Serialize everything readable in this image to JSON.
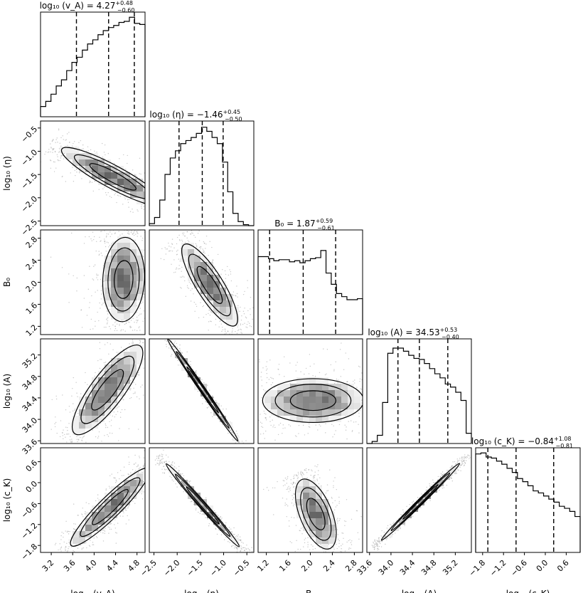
{
  "chart_data": {
    "type": "corner",
    "parameters": [
      {
        "key": "log_vA",
        "axis_label": "log₁₀ (v_A)",
        "range": [
          3.0,
          4.95
        ],
        "ticks": [
          "3.2",
          "3.6",
          "4.0",
          "4.4",
          "4.8"
        ],
        "tick_values": [
          3.2,
          3.6,
          4.0,
          4.4,
          4.8
        ],
        "median": 4.27,
        "plus": 0.48,
        "minus": 0.6,
        "title_lhs": "log₁₀ (v_A) = 4.27",
        "title_sup": "+0.48",
        "title_sub": "−0.60",
        "hist": [
          0.1,
          0.15,
          0.22,
          0.3,
          0.36,
          0.45,
          0.53,
          0.58,
          0.65,
          0.71,
          0.75,
          0.8,
          0.84,
          0.87,
          0.89,
          0.92,
          0.93,
          0.97,
          0.91,
          0.9
        ]
      },
      {
        "key": "log_eta",
        "axis_label": "log₁₀ (η)",
        "range": [
          -2.6,
          -0.35
        ],
        "ticks": [
          "−2.5",
          "−2.0",
          "−1.5",
          "−1.0",
          "−0.5"
        ],
        "tick_values": [
          -2.5,
          -2.0,
          -1.5,
          -1.0,
          -0.5
        ],
        "median": -1.46,
        "plus": 0.45,
        "minus": 0.5,
        "title_lhs": "log₁₀ (η) = −1.46",
        "title_sup": "+0.45",
        "title_sub": "−0.50",
        "hist": [
          0.02,
          0.08,
          0.25,
          0.5,
          0.66,
          0.73,
          0.8,
          0.83,
          0.86,
          0.9,
          0.96,
          0.92,
          0.86,
          0.8,
          0.62,
          0.33,
          0.12,
          0.04,
          0.01,
          0.0
        ]
      },
      {
        "key": "B0",
        "axis_label": "B₀",
        "range": [
          1.05,
          2.95
        ],
        "ticks": [
          "1.2",
          "1.6",
          "2.0",
          "2.4",
          "2.8"
        ],
        "tick_values": [
          1.2,
          1.6,
          2.0,
          2.4,
          2.8
        ],
        "median": 1.87,
        "plus": 0.59,
        "minus": 0.61,
        "title_lhs": "B₀ = 1.87",
        "title_sup": "+0.59",
        "title_sub": "−0.61",
        "hist": [
          0.76,
          0.76,
          0.74,
          0.72,
          0.73,
          0.73,
          0.71,
          0.72,
          0.7,
          0.72,
          0.74,
          0.75,
          0.82,
          0.6,
          0.49,
          0.4,
          0.37,
          0.34,
          0.34,
          0.35
        ]
      },
      {
        "key": "log_A",
        "axis_label": "log₁₀ (A)",
        "range": [
          33.55,
          35.5
        ],
        "ticks": [
          "33.6",
          "34.0",
          "34.4",
          "34.8",
          "35.2"
        ],
        "tick_values": [
          33.6,
          34.0,
          34.4,
          34.8,
          35.2
        ],
        "median": 34.53,
        "plus": 0.53,
        "minus": 0.4,
        "title_lhs": "log₁₀ (A) = 34.53",
        "title_sup": "+0.53",
        "title_sub": "−0.40",
        "hist": [
          0.0,
          0.02,
          0.08,
          0.4,
          0.88,
          0.93,
          0.93,
          0.9,
          0.86,
          0.83,
          0.82,
          0.78,
          0.73,
          0.68,
          0.64,
          0.58,
          0.55,
          0.5,
          0.42,
          0.1
        ]
      },
      {
        "key": "log_cK",
        "axis_label": "log₁₀ (c_K)",
        "range": [
          -2.0,
          1.0
        ],
        "ticks": [
          "−1.8",
          "−1.2",
          "−0.6",
          "0.0",
          "0.6"
        ],
        "tick_values": [
          -1.8,
          -1.2,
          -0.6,
          0.0,
          0.6
        ],
        "median": -0.84,
        "plus": 1.08,
        "minus": 0.81,
        "title_lhs": "log₁₀ (c_K) = −0.84",
        "title_sup": "+1.08",
        "title_sub": "−0.81",
        "hist": [
          0.96,
          0.97,
          0.93,
          0.92,
          0.89,
          0.86,
          0.82,
          0.78,
          0.72,
          0.69,
          0.65,
          0.6,
          0.58,
          0.55,
          0.52,
          0.49,
          0.45,
          0.43,
          0.4,
          0.35
        ]
      }
    ],
    "pairs": [
      {
        "row": 1,
        "col": 0,
        "center": [
          4.35,
          -1.55
        ],
        "direction": [
          0.85,
          -0.53
        ],
        "half_long": 1.1,
        "half_short": 0.24,
        "bend": 0.0
      },
      {
        "row": 2,
        "col": 0,
        "center": [
          4.55,
          2.05
        ],
        "direction": [
          0.05,
          1.0
        ],
        "half_long": 0.75,
        "half_short": 0.38,
        "bend": 0.0
      },
      {
        "row": 2,
        "col": 1,
        "center": [
          -1.3,
          1.95
        ],
        "direction": [
          0.6,
          -0.8
        ],
        "half_long": 0.9,
        "half_short": 0.28,
        "bend": 0.0
      },
      {
        "row": 3,
        "col": 0,
        "center": [
          4.25,
          34.55
        ],
        "direction": [
          0.6,
          0.8
        ],
        "half_long": 1.0,
        "half_short": 0.3,
        "bend": 0.0
      },
      {
        "row": 3,
        "col": 1,
        "center": [
          -1.45,
          34.55
        ],
        "direction": [
          0.62,
          -0.78
        ],
        "half_long": 1.2,
        "half_short": 0.05,
        "bend": 0.0
      },
      {
        "row": 3,
        "col": 2,
        "center": [
          2.05,
          34.35
        ],
        "direction": [
          1.0,
          0.0
        ],
        "half_long": 0.9,
        "half_short": 0.4,
        "bend": 0.0
      },
      {
        "row": 4,
        "col": 0,
        "center": [
          4.3,
          -0.7
        ],
        "direction": [
          0.55,
          0.83
        ],
        "half_long": 1.3,
        "half_short": 0.3,
        "bend": 0.0
      },
      {
        "row": 4,
        "col": 1,
        "center": [
          -1.45,
          -0.65
        ],
        "direction": [
          0.55,
          -0.83
        ],
        "half_long": 1.4,
        "half_short": 0.1,
        "bend": 0.0
      },
      {
        "row": 4,
        "col": 2,
        "center": [
          2.1,
          -0.9
        ],
        "direction": [
          0.25,
          -0.97
        ],
        "half_long": 1.0,
        "half_short": 0.45,
        "bend": 0.0
      },
      {
        "row": 4,
        "col": 3,
        "center": [
          34.55,
          -0.55
        ],
        "direction": [
          0.55,
          0.83
        ],
        "half_long": 1.3,
        "half_short": 0.05,
        "bend": 0.0
      }
    ]
  }
}
